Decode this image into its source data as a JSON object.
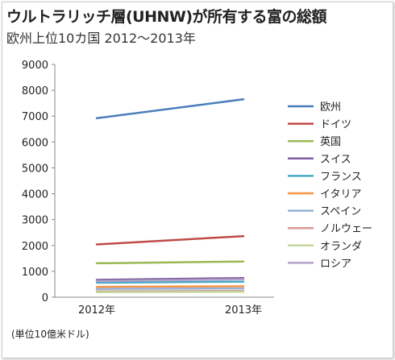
{
  "chart_data": {
    "type": "line",
    "title": "ウルトラリッチ層(UHNW)が所有する富の総額",
    "subtitle": "欧州上位10カ国 2012〜2013年",
    "unit_note": "(単位10億米ドル)",
    "categories": [
      "2012年",
      "2013年"
    ],
    "ylim": [
      0,
      9000
    ],
    "yticks": [
      0,
      1000,
      2000,
      3000,
      4000,
      5000,
      6000,
      7000,
      8000,
      9000
    ],
    "grid": false,
    "legend_position": "right",
    "series": [
      {
        "name": "欧州",
        "values": [
          6920,
          7650
        ],
        "color": "#4a7ebb"
      },
      {
        "name": "ドイツ",
        "values": [
          2040,
          2360
        ],
        "color": "#be4b48"
      },
      {
        "name": "英国",
        "values": [
          1310,
          1380
        ],
        "color": "#98b954"
      },
      {
        "name": "スイス",
        "values": [
          670,
          740
        ],
        "color": "#7d60a0"
      },
      {
        "name": "フランス",
        "values": [
          560,
          600
        ],
        "color": "#46aac5"
      },
      {
        "name": "イタリア",
        "values": [
          400,
          420
        ],
        "color": "#f69546"
      },
      {
        "name": "スペイン",
        "values": [
          320,
          340
        ],
        "color": "#95b3d7"
      },
      {
        "name": "ノルウェー",
        "values": [
          230,
          240
        ],
        "color": "#d99795"
      },
      {
        "name": "オランダ",
        "values": [
          200,
          210
        ],
        "color": "#c3d69b"
      },
      {
        "name": "ロシア",
        "values": [
          620,
          690
        ],
        "color": "#b3a2c7"
      }
    ]
  }
}
